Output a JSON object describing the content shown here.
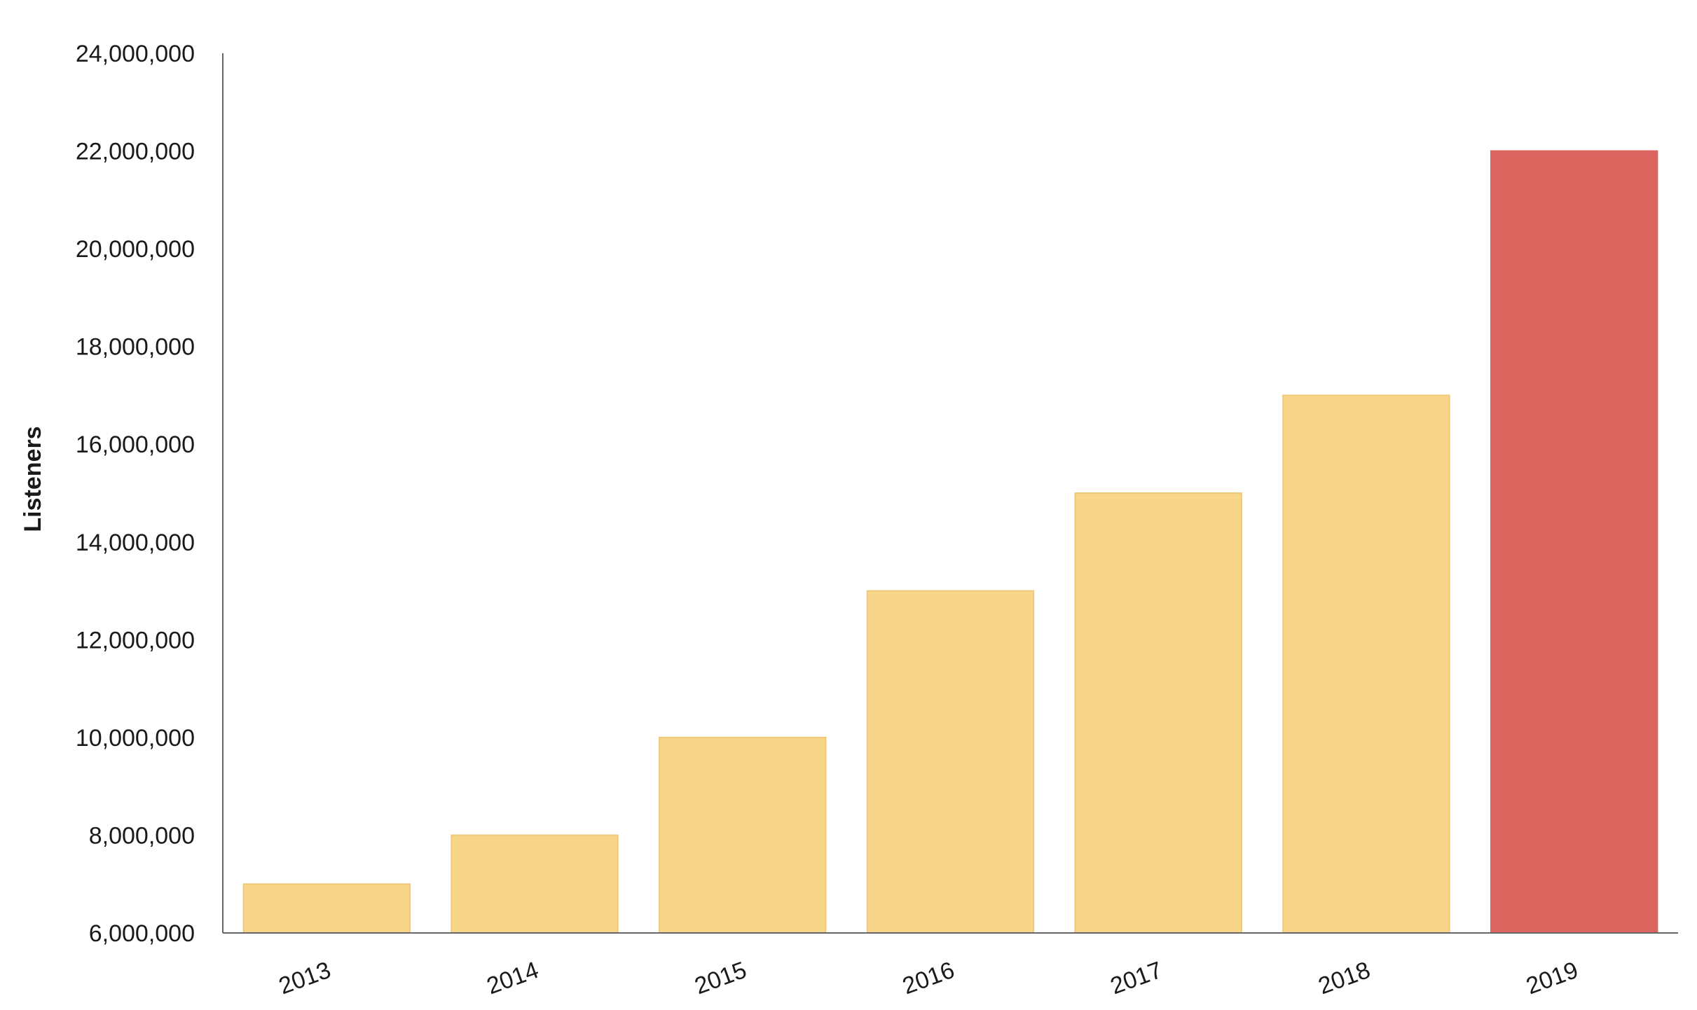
{
  "chart_data": {
    "type": "bar",
    "title": "",
    "xlabel": "",
    "ylabel": "Listeners",
    "categories": [
      "2013",
      "2014",
      "2015",
      "2016",
      "2017",
      "2018",
      "2019"
    ],
    "values": [
      7000000,
      8000000,
      10000000,
      13000000,
      15000000,
      17000000,
      22000000
    ],
    "ylim": [
      6000000,
      24000000
    ],
    "yticks": [
      6000000,
      8000000,
      10000000,
      12000000,
      14000000,
      16000000,
      18000000,
      20000000,
      22000000,
      24000000
    ],
    "ytick_labels": [
      "6,000,000",
      "8,000,000",
      "10,000,000",
      "12,000,000",
      "14,000,000",
      "16,000,000",
      "18,000,000",
      "20,000,000",
      "22,000,000",
      "24,000,000"
    ],
    "grid": false,
    "legend": "none",
    "colors": {
      "default_bar": "#f7d68a",
      "highlight_bar": "#dc6560",
      "bar_edge": "#efc878"
    },
    "highlight_category": "2019"
  }
}
